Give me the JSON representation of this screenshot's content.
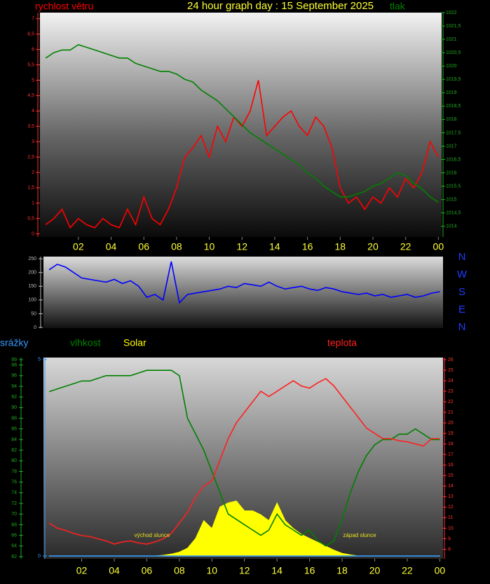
{
  "chart_data": [
    {
      "type": "line",
      "title": "24 hour graph day : 15 September 2025",
      "x": [
        0,
        0.5,
        1,
        1.5,
        2,
        2.5,
        3,
        3.5,
        4,
        4.5,
        5,
        5.5,
        6,
        6.5,
        7,
        7.5,
        8,
        8.5,
        9,
        9.5,
        10,
        10.5,
        11,
        11.5,
        12,
        12.5,
        13,
        13.5,
        14,
        14.5,
        15,
        15.5,
        16,
        16.5,
        17,
        17.5,
        18,
        18.5,
        19,
        19.5,
        20,
        20.5,
        21,
        21.5,
        22,
        22.5,
        23,
        23.5,
        24
      ],
      "xlim": [
        -0.35,
        24.2
      ],
      "xticks": [
        {
          "value": 2,
          "label": "02"
        },
        {
          "value": 4,
          "label": "04"
        },
        {
          "value": 6,
          "label": "06"
        },
        {
          "value": 8,
          "label": "08"
        },
        10,
        12,
        14,
        16,
        18,
        20,
        22,
        {
          "value": 24,
          "label": "00"
        }
      ],
      "ylim": [
        -0.1,
        7.2
      ],
      "yticks": [
        0,
        {
          "value": 0.5,
          "label": "0,5"
        },
        1,
        {
          "value": 1.5,
          "label": "1,5"
        },
        2,
        {
          "value": 2.5,
          "label": "2,5"
        },
        3,
        {
          "value": 3.5,
          "label": "3,5"
        },
        4,
        {
          "value": 4.5,
          "label": "4,5"
        },
        5,
        {
          "value": 5.5,
          "label": "5,5"
        },
        6,
        {
          "value": 6.5,
          "label": "6,5"
        },
        7
      ],
      "y2lim": [
        1013.6,
        1022
      ],
      "y2ticks": [
        1014,
        {
          "value": 1014.5,
          "label": "1014,5"
        },
        1015,
        {
          "value": 1015.5,
          "label": "1015,5"
        },
        1016,
        {
          "value": 1016.5,
          "label": "1016,5"
        },
        1017,
        {
          "value": 1017.5,
          "label": "1017,5"
        },
        1018,
        {
          "value": 1018.5,
          "label": "1018,5"
        },
        1019,
        {
          "value": 1019.5,
          "label": "1019,5"
        },
        1020,
        {
          "value": 1020.5,
          "label": "1020,5"
        },
        1021,
        {
          "value": 1021.5,
          "label": "1021,5"
        },
        1022
      ],
      "series": [
        {
          "name": "rychlost větru",
          "color": "#ff0000",
          "values": [
            0.3,
            0.5,
            0.8,
            0.2,
            0.5,
            0.3,
            0.2,
            0.5,
            0.3,
            0.2,
            0.8,
            0.3,
            1.2,
            0.5,
            0.3,
            0.8,
            1.5,
            2.5,
            2.8,
            3.2,
            2.5,
            3.5,
            3,
            3.8,
            3.5,
            4,
            5,
            3.2,
            3.5,
            3.8,
            4,
            3.5,
            3.2,
            3.8,
            3.5,
            2.8,
            1.5,
            1,
            1.2,
            0.8,
            1.2,
            1,
            1.5,
            1.2,
            1.8,
            1.5,
            2,
            3,
            2.5
          ]
        },
        {
          "name": "tlak",
          "color": "#008000",
          "axis": "y2",
          "values": [
            1020.3,
            1020.5,
            1020.6,
            1020.6,
            1020.8,
            1020.7,
            1020.6,
            1020.5,
            1020.4,
            1020.3,
            1020.3,
            1020.1,
            1020.0,
            1019.9,
            1019.8,
            1019.8,
            1019.7,
            1019.5,
            1019.4,
            1019.1,
            1018.9,
            1018.7,
            1018.4,
            1018.1,
            1017.8,
            1017.5,
            1017.3,
            1017.1,
            1016.9,
            1016.7,
            1016.5,
            1016.3,
            1016.0,
            1015.8,
            1015.5,
            1015.3,
            1015.1,
            1015.1,
            1015.2,
            1015.3,
            1015.5,
            1015.6,
            1015.8,
            1016.0,
            1015.9,
            1015.6,
            1015.4,
            1015.1,
            1014.9
          ]
        }
      ]
    },
    {
      "type": "line",
      "x": [
        0,
        0.5,
        1,
        1.5,
        2,
        2.5,
        3,
        3.5,
        4,
        4.5,
        5,
        5.5,
        6,
        6.5,
        7,
        7.5,
        8,
        8.5,
        9,
        9.5,
        10,
        10.5,
        11,
        11.5,
        12,
        12.5,
        13,
        13.5,
        14,
        14.5,
        15,
        15.5,
        16,
        16.5,
        17,
        17.5,
        18,
        18.5,
        19,
        19.5,
        20,
        20.5,
        21,
        21.5,
        22,
        22.5,
        23,
        23.5,
        24
      ],
      "xlim": [
        -0.35,
        24.2
      ],
      "ylim": [
        -2.5,
        258
      ],
      "yticks": [
        0,
        50,
        100,
        150,
        200,
        250
      ],
      "compass": [
        "N",
        "W",
        "S",
        "E",
        "N"
      ],
      "series": [
        {
          "color": "#0000ff",
          "values": [
            210,
            230,
            220,
            200,
            180,
            175,
            170,
            165,
            175,
            160,
            170,
            150,
            110,
            120,
            100,
            240,
            90,
            120,
            125,
            130,
            135,
            140,
            150,
            145,
            160,
            155,
            150,
            165,
            150,
            140,
            145,
            150,
            140,
            135,
            145,
            140,
            130,
            125,
            120,
            125,
            115,
            120,
            110,
            115,
            120,
            110,
            115,
            125,
            130
          ]
        }
      ]
    },
    {
      "type": "line",
      "x": [
        0,
        0.5,
        1,
        1.5,
        2,
        2.5,
        3,
        3.5,
        4,
        4.5,
        5,
        5.5,
        6,
        6.5,
        7,
        7.5,
        8,
        8.5,
        9,
        9.5,
        10,
        10.5,
        11,
        11.5,
        12,
        12.5,
        13,
        13.5,
        14,
        14.5,
        15,
        15.5,
        16,
        16.5,
        17,
        17.5,
        18,
        18.5,
        19,
        19.5,
        20,
        20.5,
        21,
        21.5,
        22,
        22.5,
        23,
        23.5,
        24
      ],
      "xlim": [
        -0.35,
        24.2
      ],
      "xticks": [
        {
          "value": 2,
          "label": "02"
        },
        {
          "value": 4,
          "label": "04"
        },
        {
          "value": 6,
          "label": "06"
        },
        {
          "value": 8,
          "label": "08"
        },
        10,
        12,
        14,
        16,
        18,
        20,
        22,
        {
          "value": 24,
          "label": "00"
        }
      ],
      "ylim": [
        61.6,
        99.4
      ],
      "yticks": [
        62,
        64,
        66,
        68,
        70,
        72,
        74,
        76,
        78,
        80,
        82,
        84,
        86,
        88,
        90,
        92,
        94,
        96,
        98,
        99
      ],
      "y2lim": [
        7.1,
        26.2
      ],
      "y2ticks": [
        8,
        9,
        10,
        11,
        12,
        13,
        14,
        15,
        16,
        17,
        18,
        19,
        20,
        21,
        22,
        23,
        24,
        25,
        26
      ],
      "y3lim": [
        -0.07,
        5.05
      ],
      "y3ticks": [
        0,
        5
      ],
      "annotations": [
        "východ slunce",
        "západ slunce"
      ],
      "series": [
        {
          "name": "srážky",
          "color": "#3399ff",
          "axis": "y3",
          "values": [
            0,
            0,
            0,
            0,
            0,
            0,
            0,
            0,
            0,
            0,
            0,
            0,
            0,
            0,
            0,
            0,
            0,
            0,
            0,
            0,
            0,
            0,
            0,
            0,
            0,
            0,
            0,
            0,
            0,
            0,
            0,
            0,
            0,
            0,
            0,
            0,
            0,
            0,
            0,
            0,
            0,
            0,
            0,
            0,
            0,
            0,
            0,
            0,
            0
          ]
        },
        {
          "name": "vlhkost",
          "color": "#008000",
          "values": [
            93,
            93.5,
            94,
            94.5,
            95,
            95,
            95.5,
            96,
            96,
            96,
            96,
            96.5,
            97,
            97,
            97,
            97,
            96,
            88,
            85,
            82,
            78,
            74,
            70,
            69,
            68,
            67,
            66,
            67,
            70,
            68,
            67,
            66,
            67,
            65,
            64,
            65,
            69,
            74,
            78,
            81,
            83,
            84,
            84,
            85,
            85,
            86,
            85,
            84,
            84
          ]
        },
        {
          "name": "Solar",
          "color": "#ffff00",
          "axis": "y3",
          "fill": true,
          "values": [
            0,
            0,
            0,
            0,
            0,
            0,
            0,
            0,
            0,
            0,
            0,
            0,
            0,
            0,
            0.02,
            0.05,
            0.1,
            0.2,
            0.45,
            0.9,
            0.7,
            1.25,
            1.35,
            1.4,
            1.15,
            1.15,
            1.05,
            0.9,
            1.35,
            0.9,
            0.7,
            0.55,
            0.45,
            0.35,
            0.25,
            0.15,
            0.07,
            0.03,
            0,
            0,
            0,
            0,
            0,
            0,
            0,
            0,
            0,
            0,
            0
          ]
        },
        {
          "name": "teplota",
          "color": "#ff2020",
          "axis": "y2",
          "values": [
            10.5,
            10,
            9.8,
            9.5,
            9.3,
            9.2,
            9,
            8.8,
            8.5,
            8.7,
            8.8,
            8.6,
            8.5,
            8.7,
            9,
            9.5,
            10.5,
            11.5,
            13,
            14,
            14.5,
            16.5,
            18.5,
            20,
            21,
            22,
            23,
            22.5,
            23,
            23.5,
            24,
            23.5,
            23.3,
            23.8,
            24.2,
            23.5,
            22.5,
            21.5,
            20.5,
            19.5,
            19,
            18.5,
            18.5,
            18.3,
            18.2,
            18,
            17.8,
            18.5,
            18.5
          ]
        }
      ]
    }
  ]
}
